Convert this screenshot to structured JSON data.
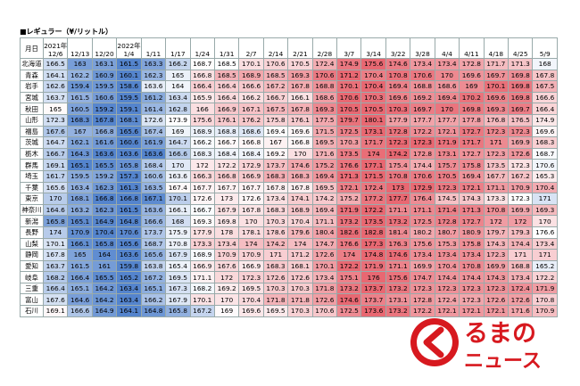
{
  "title": "■レギュラー（¥/リットル）",
  "table": {
    "corner": "月日",
    "columns": [
      {
        "year": "2021年",
        "date": "12/6"
      },
      {
        "date": "12/13"
      },
      {
        "date": "12/20"
      },
      {
        "year": "2022年",
        "date": "1/4"
      },
      {
        "date": "1/11"
      },
      {
        "date": "1/17"
      },
      {
        "date": "1/24"
      },
      {
        "date": "1/31"
      },
      {
        "date": "2/7"
      },
      {
        "date": "2/14"
      },
      {
        "date": "2/21"
      },
      {
        "date": "2/28"
      },
      {
        "date": "3/7"
      },
      {
        "date": "3/14"
      },
      {
        "date": "3/22"
      },
      {
        "date": "3/28"
      },
      {
        "date": "4/4"
      },
      {
        "date": "4/11"
      },
      {
        "date": "4/18"
      },
      {
        "date": "4/25"
      },
      {
        "date": "5/9"
      }
    ],
    "rows": [
      {
        "name": "北海道",
        "values": [
          166.5,
          163.0,
          163.1,
          161.5,
          163.3,
          166.2,
          168.7,
          168.5,
          170.1,
          170.6,
          170.5,
          172.4,
          174.9,
          175.6,
          174.6,
          173.4,
          173.4,
          172.8,
          171.7,
          171.3,
          168.0
        ]
      },
      {
        "name": "青森",
        "values": [
          164.1,
          162.2,
          160.9,
          160.1,
          162.3,
          165.0,
          166.8,
          168.5,
          168.9,
          168.5,
          169.3,
          170.6,
          171.2,
          170.4,
          170.8,
          170.6,
          170.0,
          169.6,
          169.7,
          169.8,
          167.8
        ]
      },
      {
        "name": "岩手",
        "values": [
          162.6,
          159.4,
          159.5,
          158.6,
          163.6,
          164.0,
          166.4,
          166.4,
          166.6,
          167.2,
          167.8,
          168.8,
          170.1,
          170.4,
          169.4,
          168.8,
          168.6,
          169.0,
          170.1,
          169.8,
          167.5
        ]
      },
      {
        "name": "宮城",
        "values": [
          163.7,
          161.5,
          160.6,
          159.5,
          161.2,
          163.4,
          165.9,
          166.4,
          166.2,
          166.7,
          166.1,
          168.6,
          170.6,
          170.3,
          169.6,
          169.2,
          169.4,
          170.2,
          169.6,
          169.8,
          166.6
        ]
      },
      {
        "name": "秋田",
        "values": [
          165.0,
          160.5,
          159.2,
          159.1,
          161.4,
          162.8,
          166.0,
          166.9,
          167.1,
          167.5,
          167.8,
          169.3,
          170.5,
          170.5,
          170.3,
          169.7,
          170.0,
          169.8,
          169.3,
          169.7,
          166.4
        ]
      },
      {
        "name": "山形",
        "values": [
          172.3,
          168.3,
          167.8,
          168.1,
          172.6,
          173.9,
          175.6,
          176.1,
          176.2,
          175.8,
          176.1,
          177.5,
          179.7,
          180.1,
          177.9,
          177.7,
          177.7,
          177.8,
          176.8,
          176.5,
          174.9
        ]
      },
      {
        "name": "福島",
        "values": [
          167.6,
          167.0,
          166.8,
          165.6,
          167.4,
          169.0,
          168.9,
          168.8,
          168.6,
          169.4,
          169.6,
          171.5,
          172.5,
          173.1,
          172.8,
          172.2,
          172.1,
          172.7,
          172.3,
          172.3,
          169.6
        ]
      },
      {
        "name": "茨城",
        "values": [
          164.7,
          162.1,
          161.6,
          160.6,
          161.9,
          164.7,
          166.2,
          166.7,
          166.8,
          167.0,
          166.8,
          169.5,
          170.3,
          171.7,
          172.3,
          172.3,
          171.9,
          171.7,
          171.0,
          169.9,
          168.3
        ]
      },
      {
        "name": "栃木",
        "values": [
          166.7,
          164.3,
          163.6,
          163.6,
          163.6,
          166.6,
          168.3,
          168.4,
          168.4,
          169.2,
          170.0,
          171.6,
          173.5,
          174.0,
          174.2,
          172.8,
          173.1,
          172.7,
          172.3,
          172.6,
          168.7
        ]
      },
      {
        "name": "群馬",
        "values": [
          169.1,
          165.1,
          165.5,
          165.8,
          168.4,
          170.0,
          172.0,
          172.2,
          172.9,
          173.7,
          174.6,
          175.2,
          176.6,
          177.1,
          175.4,
          174.4,
          175.7,
          175.8,
          173.5,
          172.3,
          170.6
        ]
      },
      {
        "name": "埼玉",
        "values": [
          161.7,
          159.5,
          159.2,
          157.3,
          160.6,
          163.6,
          166.3,
          166.8,
          166.9,
          168.3,
          168.3,
          169.4,
          171.3,
          171.5,
          170.8,
          170.6,
          170.5,
          169.4,
          167.7,
          167.2,
          165.3
        ]
      },
      {
        "name": "千葉",
        "values": [
          165.6,
          163.4,
          162.3,
          161.3,
          163.5,
          167.4,
          167.7,
          167.7,
          167.7,
          167.8,
          167.8,
          169.5,
          172.1,
          172.4,
          173.0,
          172.9,
          172.3,
          172.1,
          171.1,
          170.9,
          170.4
        ]
      },
      {
        "name": "東京",
        "values": [
          170.0,
          168.1,
          166.8,
          166.8,
          167.1,
          170.1,
          172.6,
          173.0,
          172.6,
          173.4,
          174.1,
          174.2,
          175.2,
          177.2,
          177.7,
          176.4,
          174.5,
          174.3,
          173.3,
          172.3,
          171.0
        ]
      },
      {
        "name": "神奈川",
        "values": [
          164.6,
          163.2,
          162.3,
          161.5,
          163.6,
          166.1,
          166.7,
          167.9,
          167.8,
          168.3,
          168.9,
          169.4,
          171.9,
          172.2,
          171.1,
          171.1,
          171.4,
          171.3,
          170.8,
          169.9,
          169.3
        ]
      },
      {
        "name": "新潟",
        "values": [
          165.8,
          165.1,
          164.9,
          164.8,
          166.6,
          168.0,
          169.3,
          169.8,
          170.0,
          170.3,
          170.4,
          171.1,
          173.2,
          173.5,
          173.2,
          172.5,
          172.8,
          172.7,
          172.0,
          172.0,
          170.0
        ]
      },
      {
        "name": "長野",
        "values": [
          174.0,
          170.9,
          170.4,
          170.6,
          173.7,
          175.9,
          177.9,
          178.0,
          178.1,
          178.6,
          179.6,
          180.4,
          182.6,
          182.8,
          181.4,
          180.2,
          180.7,
          180.9,
          179.7,
          179.3,
          176.6
        ]
      },
      {
        "name": "山梨",
        "values": [
          170.1,
          166.1,
          165.8,
          165.6,
          168.7,
          170.8,
          173.3,
          173.4,
          174.0,
          174.2,
          174.0,
          174.7,
          176.6,
          177.3,
          176.3,
          175.6,
          175.3,
          175.8,
          174.3,
          174.4,
          173.4
        ]
      },
      {
        "name": "静岡",
        "values": [
          167.8,
          165.0,
          164.0,
          163.6,
          165.6,
          167.9,
          168.9,
          170.9,
          170.9,
          171.0,
          171.2,
          172.6,
          174.0,
          174.8,
          174.6,
          173.4,
          173.4,
          173.4,
          172.3,
          171.0,
          171.0
        ]
      },
      {
        "name": "愛知",
        "values": [
          163.7,
          161.5,
          161.0,
          159.8,
          163.8,
          165.4,
          166.9,
          167.6,
          166.9,
          168.3,
          168.1,
          170.1,
          172.2,
          171.9,
          171.1,
          169.9,
          170.4,
          170.8,
          169.9,
          168.8,
          165.2
        ]
      },
      {
        "name": "岐阜",
        "values": [
          168.2,
          166.4,
          165.5,
          165.2,
          167.2,
          169.5,
          171.1,
          172.0,
          172.3,
          172.6,
          172.6,
          173.4,
          175.1,
          176.0,
          175.6,
          174.7,
          174.4,
          174.4,
          174.3,
          173.4,
          172.2
        ]
      },
      {
        "name": "三重",
        "values": [
          166.4,
          165.1,
          164.2,
          163.4,
          165.1,
          167.3,
          168.2,
          169.2,
          169.5,
          170.3,
          170.3,
          171.8,
          173.2,
          173.7,
          173.2,
          172.3,
          172.3,
          172.3,
          172.3,
          172.4,
          171.9
        ]
      },
      {
        "name": "富山",
        "values": [
          167.6,
          164.6,
          164.2,
          163.4,
          166.2,
          167.9,
          170.1,
          170.0,
          170.4,
          171.8,
          171.8,
          172.6,
          174.6,
          173.7,
          173.1,
          172.8,
          172.4,
          172.3,
          172.6,
          172.6,
          170.8
        ]
      },
      {
        "name": "石川",
        "values": [
          169.1,
          166.6,
          164.9,
          164.1,
          164.8,
          165.8,
          167.2,
          169.0,
          169.6,
          169.5,
          170.3,
          170.6,
          172.5,
          173.6,
          173.2,
          172.2,
          172.1,
          172.1,
          172.1,
          171.6,
          170.9
        ]
      }
    ]
  },
  "logo": {
    "top": "るまの",
    "bottom": "ニュース"
  }
}
